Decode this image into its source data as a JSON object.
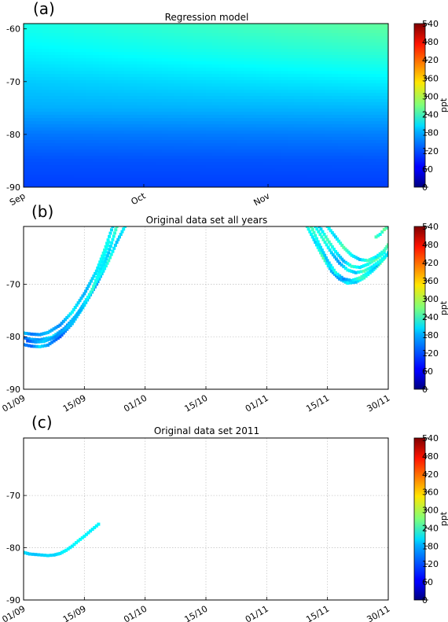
{
  "chart_data": [
    {
      "type": "heatmap",
      "panel_label": "(a)",
      "title": "Regression model",
      "x_ticks": [
        "Sep",
        "Oct",
        "Nov"
      ],
      "y_ticks": [
        -60,
        -70,
        -80,
        -90
      ],
      "ylim": [
        -90,
        -59
      ],
      "colorbar": {
        "label": "ppt",
        "range": [
          0,
          540
        ],
        "ticks": [
          0,
          60,
          120,
          180,
          240,
          300,
          360,
          420,
          480,
          540
        ]
      },
      "surface": {
        "y": [
          -59,
          -65,
          -70,
          -75,
          -80,
          -85,
          -90
        ],
        "left_values": [
          215,
          195,
          175,
          160,
          130,
          110,
          100
        ],
        "right_values": [
          255,
          225,
          195,
          165,
          135,
          112,
          100
        ]
      }
    },
    {
      "type": "scatter",
      "panel_label": "(b)",
      "title": "Original data set all years",
      "x_ticks": [
        "01/09",
        "15/09",
        "01/10",
        "15/10",
        "01/11",
        "15/11",
        "30/11"
      ],
      "y_ticks": [
        -70,
        -80,
        -90
      ],
      "xlim": [
        0,
        90
      ],
      "ylim": [
        -90,
        -59
      ],
      "grid": true,
      "colorbar": {
        "label": "ppt",
        "range": [
          0,
          540
        ],
        "ticks": [
          0,
          60,
          120,
          180,
          240,
          300,
          360,
          420,
          480,
          540
        ]
      },
      "tracks": [
        {
          "x": [
            0,
            2,
            4,
            6,
            9,
            12,
            15,
            18,
            21,
            23,
            25
          ],
          "y": [
            -81.5,
            -81.8,
            -81.9,
            -81.6,
            -80,
            -77.5,
            -74,
            -70,
            -65.5,
            -62,
            -59
          ],
          "values": [
            140,
            120,
            190,
            150,
            110,
            170,
            200,
            140,
            230,
            170,
            200
          ]
        },
        {
          "x": [
            0,
            2,
            4,
            7,
            10,
            13,
            16,
            19,
            21,
            23
          ],
          "y": [
            -80.2,
            -80.5,
            -80.6,
            -80.1,
            -78.5,
            -76,
            -72.5,
            -68,
            -64,
            -59
          ],
          "values": [
            120,
            160,
            140,
            200,
            130,
            180,
            150,
            210,
            170,
            240
          ]
        },
        {
          "x": [
            0,
            2,
            4,
            6,
            9,
            12,
            15,
            18,
            20,
            22
          ],
          "y": [
            -79.3,
            -79.5,
            -79.6,
            -79.2,
            -77.8,
            -75.3,
            -71.8,
            -67.5,
            -63.5,
            -59
          ],
          "values": [
            180,
            130,
            150,
            170,
            140,
            200,
            160,
            190,
            220,
            180
          ]
        },
        {
          "x": [
            1,
            3,
            5,
            8,
            11,
            14,
            17,
            19,
            21
          ],
          "y": [
            -80.8,
            -81,
            -80.9,
            -80,
            -78,
            -75,
            -71,
            -67,
            -62
          ],
          "values": [
            110,
            150,
            180,
            140,
            170,
            160,
            230,
            190,
            210
          ]
        },
        {
          "x": [
            70,
            72,
            74,
            76,
            78,
            80,
            82,
            84,
            86,
            88,
            90
          ],
          "y": [
            -59,
            -62,
            -65,
            -67.5,
            -69,
            -69.8,
            -69.6,
            -68.8,
            -67.5,
            -66,
            -64
          ],
          "values": [
            220,
            180,
            250,
            160,
            150,
            200,
            170,
            230,
            190,
            260,
            210
          ]
        },
        {
          "x": [
            71,
            73,
            75,
            77,
            79,
            81,
            83,
            85,
            87,
            89
          ],
          "y": [
            -59,
            -62.5,
            -65.5,
            -67.8,
            -69,
            -69.3,
            -68.8,
            -67.8,
            -66.5,
            -65
          ],
          "values": [
            250,
            190,
            170,
            220,
            140,
            180,
            240,
            200,
            160,
            230
          ]
        },
        {
          "x": [
            72,
            74,
            76,
            78,
            80,
            82,
            84,
            86,
            88,
            90
          ],
          "y": [
            -59,
            -61.5,
            -64,
            -66,
            -67.3,
            -67.8,
            -67.5,
            -66.7,
            -65.5,
            -64.2
          ],
          "values": [
            200,
            230,
            180,
            150,
            210,
            170,
            250,
            190,
            220,
            180
          ]
        },
        {
          "x": [
            73,
            75,
            77,
            79,
            81,
            83,
            85,
            87,
            89
          ],
          "y": [
            -59,
            -61.5,
            -63.8,
            -65.6,
            -66.6,
            -66.8,
            -66.2,
            -65.2,
            -64
          ],
          "values": [
            170,
            240,
            200,
            160,
            230,
            190,
            210,
            260,
            200
          ]
        },
        {
          "x": [
            75,
            77,
            79,
            81,
            83,
            85,
            87,
            89,
            90
          ],
          "y": [
            -59,
            -61,
            -63,
            -64.5,
            -65.3,
            -65.5,
            -64.8,
            -63.6,
            -62.5
          ],
          "values": [
            210,
            180,
            250,
            200,
            170,
            240,
            190,
            230,
            250
          ]
        },
        {
          "x": [
            87,
            88,
            89,
            90
          ],
          "y": [
            -61,
            -60.5,
            -59.6,
            -59
          ],
          "values": [
            240,
            210,
            260,
            230
          ]
        }
      ]
    },
    {
      "type": "scatter",
      "panel_label": "(c)",
      "title": "Original data set 2011",
      "x_ticks": [
        "01/09",
        "15/09",
        "01/10",
        "15/10",
        "01/11",
        "15/11",
        "30/11"
      ],
      "y_ticks": [
        -70,
        -80,
        -90
      ],
      "xlim": [
        0,
        90
      ],
      "ylim": [
        -90,
        -59
      ],
      "grid": true,
      "colorbar": {
        "label": "ppt",
        "range": [
          0,
          540
        ],
        "ticks": [
          0,
          60,
          120,
          180,
          240,
          300,
          360,
          420,
          480,
          540
        ]
      },
      "tracks": [
        {
          "x": [
            0,
            1.5,
            3,
            4.5,
            6,
            7.5,
            9,
            10.5,
            12,
            13.5,
            15,
            16.5,
            18.5
          ],
          "y": [
            -80.9,
            -81.2,
            -81.3,
            -81.4,
            -81.5,
            -81.4,
            -81.1,
            -80.5,
            -79.7,
            -78.7,
            -77.8,
            -76.8,
            -75.5
          ],
          "values": [
            190,
            175,
            170,
            180,
            185,
            178,
            190,
            200,
            195,
            205,
            200,
            195,
            200
          ]
        }
      ]
    }
  ]
}
